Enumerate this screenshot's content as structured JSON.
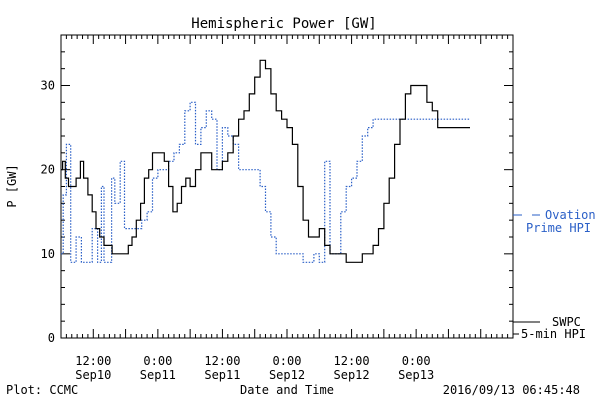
{
  "chart_data": {
    "type": "line",
    "title": "Hemispheric Power [GW]",
    "xlabel": "Date and Time",
    "ylabel": "P [GW]",
    "ylim": [
      0,
      36
    ],
    "xlim_hours": [
      0,
      84
    ],
    "y_ticks": [
      0,
      10,
      20,
      30
    ],
    "x_ticks": [
      {
        "hour": 6,
        "line1": "12:00",
        "line2": "Sep10"
      },
      {
        "hour": 18,
        "line1": "0:00",
        "line2": "Sep11"
      },
      {
        "hour": 30,
        "line1": "12:00",
        "line2": "Sep11"
      },
      {
        "hour": 42,
        "line1": "0:00",
        "line2": "Sep12"
      },
      {
        "hour": 54,
        "line1": "12:00",
        "line2": "Sep12"
      },
      {
        "hour": 66,
        "line1": "0:00",
        "line2": "Sep13"
      }
    ],
    "grid": false,
    "series": [
      {
        "name": "SWPC 5-min HPI",
        "color": "#000000",
        "style": "solid",
        "legend_lines": [
          "SWPC",
          "5-min HPI"
        ],
        "x": [
          0,
          0.3,
          0.8,
          1.4,
          2,
          2.8,
          3.6,
          4.2,
          5,
          5.8,
          6.5,
          7.2,
          8,
          8.8,
          9.5,
          10.5,
          11.5,
          12.5,
          13.2,
          14,
          14.8,
          15.5,
          16.3,
          17,
          17.8,
          18.5,
          19.2,
          20,
          20.8,
          21.6,
          22.4,
          23.2,
          24,
          25,
          26,
          27,
          28,
          29,
          30,
          31,
          32,
          33,
          34,
          35,
          36,
          37,
          38,
          39,
          40,
          41,
          42,
          43,
          44,
          45,
          46,
          47,
          48,
          49,
          50,
          51,
          52,
          53,
          54,
          55,
          56,
          57,
          58,
          59,
          60,
          61,
          62,
          63,
          64,
          65,
          66,
          67,
          68,
          69,
          70,
          71,
          72,
          73,
          74,
          75,
          76
        ],
        "y": [
          20,
          21,
          19,
          18,
          18,
          19,
          21,
          19,
          17,
          15,
          13,
          12,
          11,
          11,
          10,
          10,
          10,
          11,
          12,
          14,
          16,
          19,
          20,
          22,
          22,
          22,
          21,
          18,
          15,
          16,
          18,
          19,
          18,
          20,
          22,
          22,
          20,
          20,
          21,
          22,
          24,
          26,
          27,
          29,
          31,
          33,
          32,
          29,
          27,
          26,
          25,
          23,
          18,
          14,
          12,
          12,
          13,
          11,
          10,
          10,
          10,
          9,
          9,
          9,
          10,
          10,
          11,
          13,
          16,
          19,
          23,
          26,
          29,
          30,
          30,
          30,
          28,
          27,
          25,
          25,
          25,
          25,
          25,
          25,
          25
        ]
      },
      {
        "name": "Ovation Prime HPI",
        "color": "#2a5fc7",
        "style": "dotted",
        "legend_lines": [
          "Ovation",
          "Prime HPI"
        ],
        "x": [
          0,
          0.4,
          1,
          1.8,
          2.2,
          2.8,
          3.2,
          3.8,
          4.2,
          5.2,
          5.8,
          6.8,
          7.5,
          8,
          8.8,
          9.4,
          10,
          11,
          11.8,
          12.5,
          13.2,
          14,
          15,
          16,
          17,
          18,
          19,
          20,
          21,
          22,
          23,
          24,
          25,
          26,
          27,
          28,
          29,
          30,
          31,
          32,
          33,
          34,
          35,
          36,
          37,
          38,
          39,
          40,
          41,
          42,
          43,
          44,
          45,
          46,
          47,
          48,
          49,
          50,
          51,
          52,
          53,
          54,
          55,
          56,
          57,
          58,
          59,
          60,
          61,
          62,
          63,
          64,
          65,
          66,
          67,
          68,
          69,
          70,
          71,
          72,
          73,
          74,
          75,
          76
        ],
        "y": [
          10,
          17,
          23,
          9,
          9,
          12,
          12,
          9,
          9,
          9,
          13,
          9,
          18,
          9,
          9,
          19,
          16,
          21,
          13,
          13,
          13,
          13,
          14,
          15,
          19,
          20,
          20,
          21,
          22,
          23,
          27,
          28,
          23,
          25,
          27,
          26,
          20,
          25,
          24,
          23,
          20,
          20,
          20,
          20,
          18,
          15,
          12,
          10,
          10,
          10,
          10,
          10,
          9,
          9,
          10,
          9,
          21,
          10,
          10,
          15,
          18,
          19,
          21,
          24,
          25,
          26,
          26,
          26,
          26,
          26,
          26,
          26,
          26,
          26,
          26,
          26,
          26,
          26,
          26,
          26,
          26,
          26,
          26,
          26
        ]
      }
    ]
  },
  "footer": {
    "left": "Plot: CCMC",
    "right": "2016/09/13 06:45:48"
  }
}
